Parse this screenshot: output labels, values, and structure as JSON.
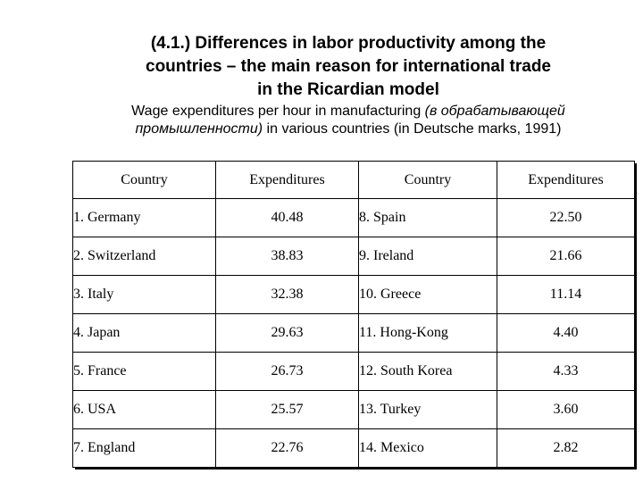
{
  "title_lines": [
    "(4.1.) Differences in labor productivity among the",
    "countries – the main reason for international trade",
    "in the Ricardian model"
  ],
  "subtitle": {
    "line1_a": "Wage expenditures per hour in manufacturing ",
    "line1_ru": "(в обрабатывающей",
    "line2_ru": "промышленности)",
    "line2_b": " in various countries (in Deutsche marks, 1991)"
  },
  "table": {
    "headers": [
      "Country",
      "Expenditures",
      "Country",
      "Expenditures"
    ],
    "rows": [
      {
        "c1": "1. Germany",
        "v1": "40.48",
        "c2": "8. Spain",
        "v2": "22.50"
      },
      {
        "c1": "2. Switzerland",
        "v1": "38.83",
        "c2": "9. Ireland",
        "v2": "21.66"
      },
      {
        "c1": "3. Italy",
        "v1": "32.38",
        "c2": "10. Greece",
        "v2": "11.14"
      },
      {
        "c1": "4. Japan",
        "v1": "29.63",
        "c2": "11. Hong-Kong",
        "v2": "4.40"
      },
      {
        "c1": "5. France",
        "v1": "26.73",
        "c2": "12. South Korea",
        "v2": "4.33"
      },
      {
        "c1": "6. USA",
        "v1": "25.57",
        "c2": "13. Turkey",
        "v2": "3.60"
      },
      {
        "c1": "7. England",
        "v1": "22.76",
        "c2": "14. Mexico",
        "v2": "2.82"
      }
    ]
  }
}
